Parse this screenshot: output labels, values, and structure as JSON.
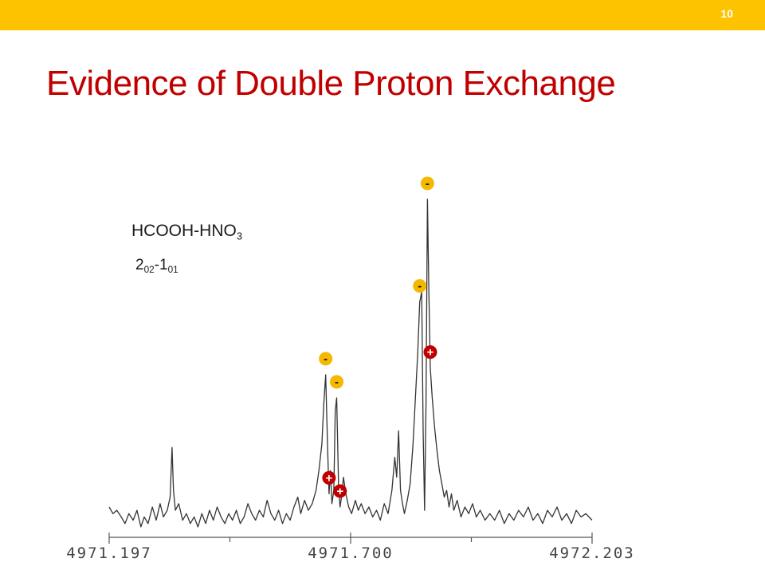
{
  "slide": {
    "number": "10",
    "title": "Evidence of Double Proton Exchange",
    "species": {
      "base": "HCOOH-HNO",
      "sub": "3"
    },
    "transition": {
      "j1": "2",
      "ka1": "02",
      "sep": "-",
      "j2": "1",
      "ka2": "01"
    }
  },
  "colors": {
    "topbar": "#FDC300",
    "title": "#C00000",
    "minus_marker": "#F5B800",
    "plus_marker": "#C00000",
    "trace": "#333333"
  },
  "chart_data": {
    "type": "line",
    "title": "",
    "xlabel": "",
    "ylabel": "",
    "xlim": [
      4971.197,
      4972.203
    ],
    "ylim": [
      0,
      1
    ],
    "x_ticks": [
      {
        "value": 4971.197,
        "label": "4971.197"
      },
      {
        "value": 4971.7,
        "label": "4971.700"
      },
      {
        "value": 4972.203,
        "label": "4972.203"
      }
    ],
    "x_minor_ticks": [
      4971.4485,
      4971.9515
    ],
    "series": [
      {
        "values": [
          [
            4971.197,
            0.07
          ],
          [
            4971.205,
            0.05
          ],
          [
            4971.213,
            0.06
          ],
          [
            4971.222,
            0.04
          ],
          [
            4971.23,
            0.02
          ],
          [
            4971.238,
            0.05
          ],
          [
            4971.247,
            0.03
          ],
          [
            4971.255,
            0.06
          ],
          [
            4971.263,
            0.01
          ],
          [
            4971.27,
            0.04
          ],
          [
            4971.278,
            0.02
          ],
          [
            4971.287,
            0.07
          ],
          [
            4971.295,
            0.03
          ],
          [
            4971.303,
            0.08
          ],
          [
            4971.31,
            0.04
          ],
          [
            4971.318,
            0.06
          ],
          [
            4971.324,
            0.1
          ],
          [
            4971.328,
            0.25
          ],
          [
            4971.331,
            0.12
          ],
          [
            4971.335,
            0.06
          ],
          [
            4971.342,
            0.08
          ],
          [
            4971.35,
            0.03
          ],
          [
            4971.358,
            0.05
          ],
          [
            4971.366,
            0.02
          ],
          [
            4971.374,
            0.04
          ],
          [
            4971.382,
            0.01
          ],
          [
            4971.39,
            0.05
          ],
          [
            4971.398,
            0.02
          ],
          [
            4971.406,
            0.06
          ],
          [
            4971.414,
            0.03
          ],
          [
            4971.422,
            0.07
          ],
          [
            4971.43,
            0.04
          ],
          [
            4971.438,
            0.02
          ],
          [
            4971.446,
            0.05
          ],
          [
            4971.454,
            0.03
          ],
          [
            4971.462,
            0.06
          ],
          [
            4971.47,
            0.02
          ],
          [
            4971.478,
            0.04
          ],
          [
            4971.486,
            0.08
          ],
          [
            4971.494,
            0.05
          ],
          [
            4971.502,
            0.03
          ],
          [
            4971.51,
            0.06
          ],
          [
            4971.518,
            0.04
          ],
          [
            4971.526,
            0.09
          ],
          [
            4971.534,
            0.05
          ],
          [
            4971.542,
            0.03
          ],
          [
            4971.55,
            0.06
          ],
          [
            4971.558,
            0.02
          ],
          [
            4971.566,
            0.05
          ],
          [
            4971.574,
            0.03
          ],
          [
            4971.582,
            0.07
          ],
          [
            4971.59,
            0.1
          ],
          [
            4971.596,
            0.05
          ],
          [
            4971.604,
            0.09
          ],
          [
            4971.612,
            0.06
          ],
          [
            4971.62,
            0.08
          ],
          [
            4971.628,
            0.12
          ],
          [
            4971.634,
            0.18
          ],
          [
            4971.64,
            0.26
          ],
          [
            4971.644,
            0.38
          ],
          [
            4971.648,
            0.47
          ],
          [
            4971.652,
            0.25
          ],
          [
            4971.655,
            0.11
          ],
          [
            4971.658,
            0.18
          ],
          [
            4971.661,
            0.08
          ],
          [
            4971.665,
            0.12
          ],
          [
            4971.668,
            0.36
          ],
          [
            4971.671,
            0.4
          ],
          [
            4971.675,
            0.13
          ],
          [
            4971.678,
            0.07
          ],
          [
            4971.681,
            0.1
          ],
          [
            4971.685,
            0.16
          ],
          [
            4971.69,
            0.11
          ],
          [
            4971.696,
            0.07
          ],
          [
            4971.702,
            0.05
          ],
          [
            4971.71,
            0.09
          ],
          [
            4971.716,
            0.06
          ],
          [
            4971.722,
            0.08
          ],
          [
            4971.73,
            0.05
          ],
          [
            4971.738,
            0.07
          ],
          [
            4971.746,
            0.04
          ],
          [
            4971.754,
            0.06
          ],
          [
            4971.762,
            0.03
          ],
          [
            4971.77,
            0.08
          ],
          [
            4971.778,
            0.05
          ],
          [
            4971.786,
            0.12
          ],
          [
            4971.792,
            0.22
          ],
          [
            4971.796,
            0.16
          ],
          [
            4971.8,
            0.3
          ],
          [
            4971.804,
            0.12
          ],
          [
            4971.808,
            0.08
          ],
          [
            4971.812,
            0.05
          ],
          [
            4971.818,
            0.09
          ],
          [
            4971.824,
            0.14
          ],
          [
            4971.83,
            0.26
          ],
          [
            4971.835,
            0.4
          ],
          [
            4971.84,
            0.54
          ],
          [
            4971.844,
            0.69
          ],
          [
            4971.848,
            0.72
          ],
          [
            4971.851,
            0.3
          ],
          [
            4971.854,
            0.06
          ],
          [
            4971.857,
            0.38
          ],
          [
            4971.86,
            1.0
          ],
          [
            4971.863,
            0.72
          ],
          [
            4971.866,
            0.49
          ],
          [
            4971.87,
            0.4
          ],
          [
            4971.875,
            0.31
          ],
          [
            4971.88,
            0.24
          ],
          [
            4971.885,
            0.18
          ],
          [
            4971.89,
            0.14
          ],
          [
            4971.895,
            0.1
          ],
          [
            4971.9,
            0.12
          ],
          [
            4971.905,
            0.07
          ],
          [
            4971.91,
            0.11
          ],
          [
            4971.915,
            0.06
          ],
          [
            4971.922,
            0.09
          ],
          [
            4971.93,
            0.04
          ],
          [
            4971.938,
            0.07
          ],
          [
            4971.946,
            0.05
          ],
          [
            4971.954,
            0.08
          ],
          [
            4971.962,
            0.04
          ],
          [
            4971.97,
            0.06
          ],
          [
            4971.98,
            0.03
          ],
          [
            4971.99,
            0.05
          ],
          [
            4972.0,
            0.03
          ],
          [
            4972.01,
            0.06
          ],
          [
            4972.02,
            0.02
          ],
          [
            4972.03,
            0.05
          ],
          [
            4972.04,
            0.03
          ],
          [
            4972.05,
            0.06
          ],
          [
            4972.06,
            0.04
          ],
          [
            4972.07,
            0.07
          ],
          [
            4972.08,
            0.03
          ],
          [
            4972.09,
            0.05
          ],
          [
            4972.1,
            0.02
          ],
          [
            4972.11,
            0.06
          ],
          [
            4972.12,
            0.04
          ],
          [
            4972.13,
            0.07
          ],
          [
            4972.14,
            0.03
          ],
          [
            4972.15,
            0.05
          ],
          [
            4972.16,
            0.02
          ],
          [
            4972.17,
            0.06
          ],
          [
            4972.18,
            0.04
          ],
          [
            4972.19,
            0.05
          ],
          [
            4972.203,
            0.03
          ]
        ]
      }
    ],
    "markers": [
      {
        "sign": "-",
        "x": 4971.648,
        "y": 0.47
      },
      {
        "sign": "-",
        "x": 4971.671,
        "y": 0.4
      },
      {
        "sign": "+",
        "x": 4971.655,
        "y": 0.11
      },
      {
        "sign": "+",
        "x": 4971.678,
        "y": 0.07
      },
      {
        "sign": "-",
        "x": 4971.844,
        "y": 0.69
      },
      {
        "sign": "-",
        "x": 4971.86,
        "y": 1.0
      },
      {
        "sign": "+",
        "x": 4971.866,
        "y": 0.49
      }
    ]
  }
}
